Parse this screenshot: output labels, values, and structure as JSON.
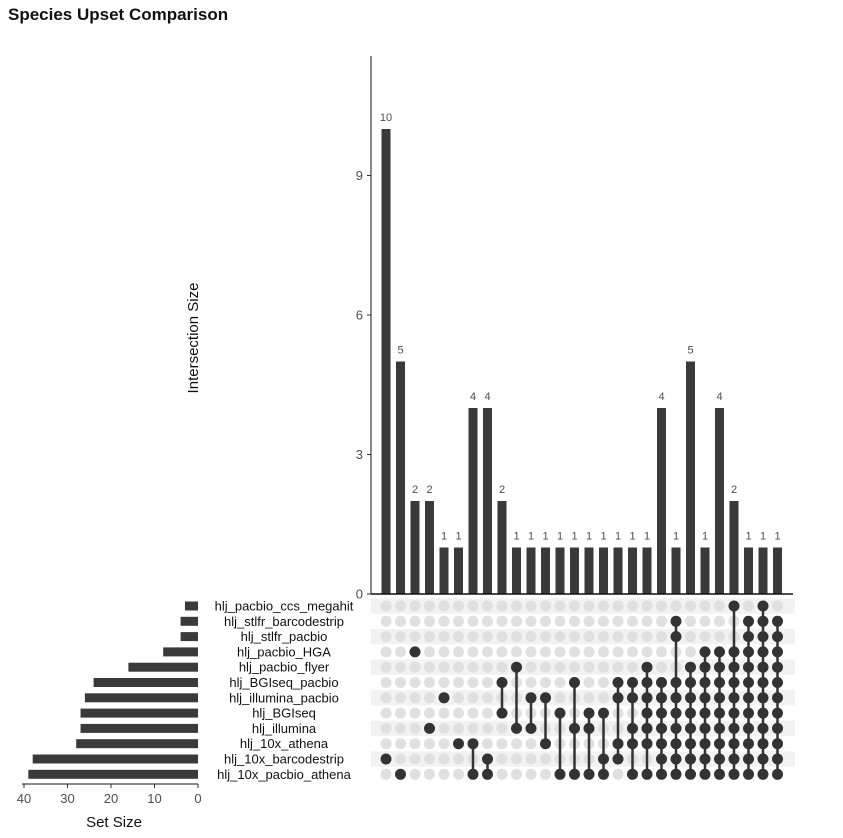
{
  "title": "Species Upset Comparison",
  "chart_data": {
    "type": "upset",
    "title": "Species Upset Comparison",
    "intersection_axis_label": "Intersection Size",
    "set_size_axis_label": "Set Size",
    "intersection_ylim": [
      0,
      11.5
    ],
    "intersection_ticks": [
      0,
      3,
      6,
      9
    ],
    "set_size_xlim": [
      0,
      40
    ],
    "set_size_ticks": [
      40,
      30,
      20,
      10,
      0
    ],
    "sets": [
      "hlj_pacbio_ccs_megahit",
      "hlj_stlfr_barcodestrip",
      "hlj_stlfr_pacbio",
      "hlj_pacbio_HGA",
      "hlj_pacbio_flyer",
      "hlj_BGIseq_pacbio",
      "hlj_illumina_pacbio",
      "hlj_BGIseq",
      "hlj_illumina",
      "hlj_10x_athena",
      "hlj_10x_barcodestrip",
      "hlj_10x_pacbio_athena"
    ],
    "set_sizes": [
      3,
      4,
      4,
      8,
      16,
      24,
      26,
      27,
      27,
      28,
      38,
      39
    ],
    "intersection_sizes": [
      10,
      5,
      2,
      2,
      1,
      1,
      4,
      4,
      2,
      1,
      1,
      1,
      1,
      1,
      1,
      1,
      1,
      1,
      1,
      4,
      1,
      5,
      1,
      4,
      2,
      1,
      1,
      1
    ],
    "intersection_members": [
      [
        10
      ],
      [
        11
      ],
      [
        3
      ],
      [
        8
      ],
      [
        6
      ],
      [
        9
      ],
      [
        9,
        11
      ],
      [
        10,
        11
      ],
      [
        5,
        7
      ],
      [
        4,
        8
      ],
      [
        6,
        8
      ],
      [
        6,
        9
      ],
      [
        7,
        11
      ],
      [
        5,
        8,
        11
      ],
      [
        7,
        8,
        11
      ],
      [
        7,
        10,
        11
      ],
      [
        5,
        6,
        9,
        10
      ],
      [
        5,
        6,
        8,
        9,
        11
      ],
      [
        4,
        5,
        6,
        7,
        8,
        9,
        11
      ],
      [
        5,
        6,
        7,
        8,
        9,
        10,
        11
      ],
      [
        1,
        2,
        5,
        6,
        7,
        8,
        9,
        10,
        11
      ],
      [
        4,
        5,
        6,
        7,
        8,
        9,
        10,
        11
      ],
      [
        3,
        4,
        5,
        6,
        7,
        8,
        9,
        10,
        11
      ],
      [
        3,
        4,
        5,
        6,
        7,
        8,
        9,
        10,
        11
      ],
      [
        0,
        3,
        4,
        5,
        6,
        7,
        8,
        9,
        10,
        11
      ],
      [
        1,
        2,
        3,
        4,
        5,
        6,
        7,
        8,
        9,
        10,
        11
      ],
      [
        0,
        1,
        2,
        3,
        4,
        5,
        6,
        7,
        8,
        9,
        10,
        11
      ],
      [
        1,
        2,
        3,
        4,
        5,
        6,
        7,
        8,
        9,
        10,
        11
      ]
    ],
    "colors": {
      "bar": "#3a3a3a",
      "dot_active": "#333333",
      "dot_inactive": "#e0e0e0",
      "stripe": "#f2f2f2"
    }
  }
}
